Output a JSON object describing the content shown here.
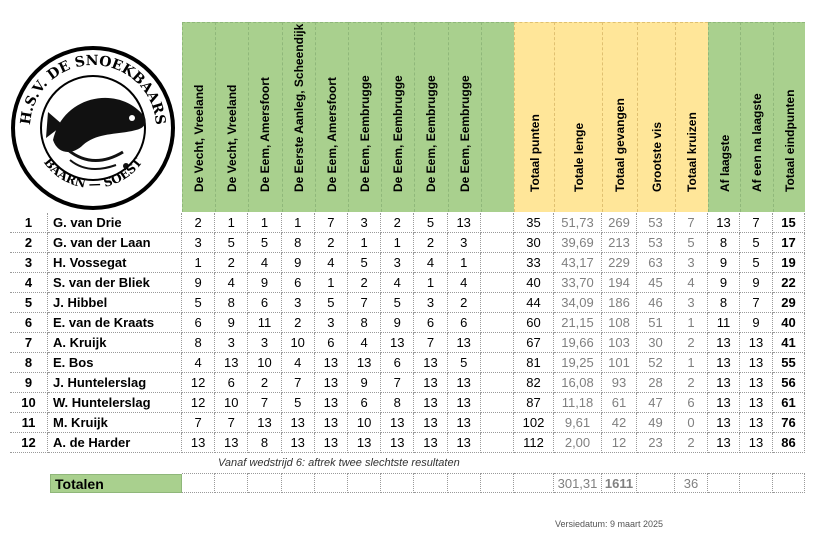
{
  "club": {
    "logo_text_top": "H.S.V. DE SNOEKBAARS",
    "logo_text_bottom": "BAARN — SOEST"
  },
  "columns": {
    "venues": [
      "De Vecht, Vreeland",
      "De Vecht, Vreeland",
      "De Eem, Amersfoort",
      "De Eerste Aanleg, Scheendijk",
      "De Eem, Amersfoort",
      "De Eem, Eembrugge",
      "De Eem, Eembrugge",
      "De Eem, Eembrugge",
      "De Eem, Eembrugge",
      ""
    ],
    "stats": [
      "Totaal punten",
      "Totale lenge",
      "Totaal gevangen",
      "Grootste vis",
      "Totaal kruizen"
    ],
    "final": [
      "Af laagste",
      "Af een na laagste",
      "Totaal eindpunten"
    ]
  },
  "rows": [
    {
      "rank": "1",
      "name": "G. van Drie",
      "scores": [
        "2",
        "1",
        "1",
        "1",
        "7",
        "3",
        "2",
        "5",
        "13",
        ""
      ],
      "total_points": "35",
      "total_length": "51,73",
      "total_caught": "269",
      "biggest": "53",
      "crosses": "7",
      "drop_low": "13",
      "drop_second": "7",
      "final": "15"
    },
    {
      "rank": "2",
      "name": "G. van der Laan",
      "scores": [
        "3",
        "5",
        "5",
        "8",
        "2",
        "1",
        "1",
        "2",
        "3",
        ""
      ],
      "total_points": "30",
      "total_length": "39,69",
      "total_caught": "213",
      "biggest": "53",
      "crosses": "5",
      "drop_low": "8",
      "drop_second": "5",
      "final": "17"
    },
    {
      "rank": "3",
      "name": "H. Vossegat",
      "scores": [
        "1",
        "2",
        "4",
        "9",
        "4",
        "5",
        "3",
        "4",
        "1",
        ""
      ],
      "total_points": "33",
      "total_length": "43,17",
      "total_caught": "229",
      "biggest": "63",
      "crosses": "3",
      "drop_low": "9",
      "drop_second": "5",
      "final": "19"
    },
    {
      "rank": "4",
      "name": "S. van der Bliek",
      "scores": [
        "9",
        "4",
        "9",
        "6",
        "1",
        "2",
        "4",
        "1",
        "4",
        ""
      ],
      "total_points": "40",
      "total_length": "33,70",
      "total_caught": "194",
      "biggest": "45",
      "crosses": "4",
      "drop_low": "9",
      "drop_second": "9",
      "final": "22"
    },
    {
      "rank": "5",
      "name": "J. Hibbel",
      "scores": [
        "5",
        "8",
        "6",
        "3",
        "5",
        "7",
        "5",
        "3",
        "2",
        ""
      ],
      "total_points": "44",
      "total_length": "34,09",
      "total_caught": "186",
      "biggest": "46",
      "crosses": "3",
      "drop_low": "8",
      "drop_second": "7",
      "final": "29"
    },
    {
      "rank": "6",
      "name": "E. van de Kraats",
      "scores": [
        "6",
        "9",
        "11",
        "2",
        "3",
        "8",
        "9",
        "6",
        "6",
        ""
      ],
      "total_points": "60",
      "total_length": "21,15",
      "total_caught": "108",
      "biggest": "51",
      "crosses": "1",
      "drop_low": "11",
      "drop_second": "9",
      "final": "40"
    },
    {
      "rank": "7",
      "name": "A. Kruijk",
      "scores": [
        "8",
        "3",
        "3",
        "10",
        "6",
        "4",
        "13",
        "7",
        "13",
        ""
      ],
      "total_points": "67",
      "total_length": "19,66",
      "total_caught": "103",
      "biggest": "30",
      "crosses": "2",
      "drop_low": "13",
      "drop_second": "13",
      "final": "41"
    },
    {
      "rank": "8",
      "name": "E. Bos",
      "scores": [
        "4",
        "13",
        "10",
        "4",
        "13",
        "13",
        "6",
        "13",
        "5",
        ""
      ],
      "total_points": "81",
      "total_length": "19,25",
      "total_caught": "101",
      "biggest": "52",
      "crosses": "1",
      "drop_low": "13",
      "drop_second": "13",
      "final": "55"
    },
    {
      "rank": "9",
      "name": "J. Huntelerslag",
      "scores": [
        "12",
        "6",
        "2",
        "7",
        "13",
        "9",
        "7",
        "13",
        "13",
        ""
      ],
      "total_points": "82",
      "total_length": "16,08",
      "total_caught": "93",
      "biggest": "28",
      "crosses": "2",
      "drop_low": "13",
      "drop_second": "13",
      "final": "56"
    },
    {
      "rank": "10",
      "name": "W. Huntelerslag",
      "scores": [
        "12",
        "10",
        "7",
        "5",
        "13",
        "6",
        "8",
        "13",
        "13",
        ""
      ],
      "total_points": "87",
      "total_length": "11,18",
      "total_caught": "61",
      "biggest": "47",
      "crosses": "6",
      "drop_low": "13",
      "drop_second": "13",
      "final": "61"
    },
    {
      "rank": "11",
      "name": "M. Kruijk",
      "scores": [
        "7",
        "7",
        "13",
        "13",
        "13",
        "10",
        "13",
        "13",
        "13",
        ""
      ],
      "total_points": "102",
      "total_length": "9,61",
      "total_caught": "42",
      "biggest": "49",
      "crosses": "0",
      "drop_low": "13",
      "drop_second": "13",
      "final": "76"
    },
    {
      "rank": "12",
      "name": "A. de Harder",
      "scores": [
        "13",
        "13",
        "8",
        "13",
        "13",
        "13",
        "13",
        "13",
        "13",
        ""
      ],
      "total_points": "112",
      "total_length": "2,00",
      "total_caught": "12",
      "biggest": "23",
      "crosses": "2",
      "drop_low": "13",
      "drop_second": "13",
      "final": "86"
    }
  ],
  "note": "Vanaf wedstrijd 6: aftrek twee slechtste resultaten",
  "totals": {
    "label": "Totalen",
    "total_length": "301,31",
    "total_caught": "1611",
    "crosses": "36"
  },
  "version": "Versiedatum: 9 maart 2025",
  "colors": {
    "header_green": "#a9d08e",
    "header_yellow": "#ffe699"
  }
}
